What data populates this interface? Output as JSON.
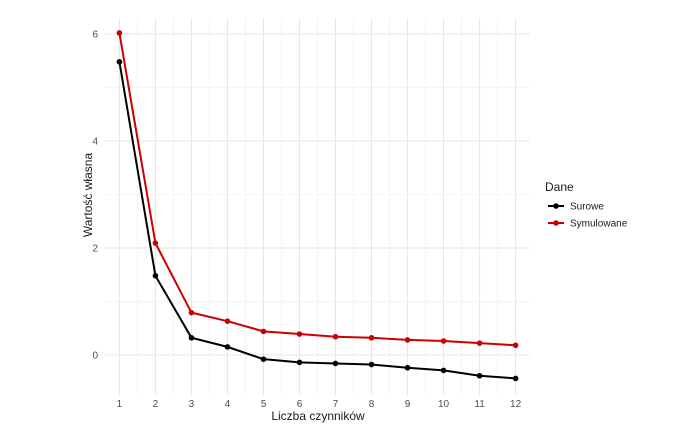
{
  "chart_data": {
    "type": "line",
    "title": "",
    "xlabel": "Liczba czynników",
    "ylabel": "Wartość własna",
    "x": [
      1,
      2,
      3,
      4,
      5,
      6,
      7,
      8,
      9,
      10,
      11,
      12
    ],
    "x_ticks": [
      "1",
      "2",
      "3",
      "4",
      "5",
      "6",
      "7",
      "8",
      "9",
      "10",
      "11",
      "12"
    ],
    "y_ticks": [
      "0",
      "2",
      "4",
      "6"
    ],
    "xlim": [
      0.6,
      12.4
    ],
    "ylim": [
      -0.75,
      6.3
    ],
    "grid": true,
    "legend": {
      "title": "Dane",
      "position": "right"
    },
    "series": [
      {
        "name": "Surowe",
        "color": "#000000",
        "values": [
          5.48,
          1.48,
          0.32,
          0.15,
          -0.08,
          -0.14,
          -0.16,
          -0.18,
          -0.24,
          -0.29,
          -0.39,
          -0.44
        ]
      },
      {
        "name": "Symulowane",
        "color": "#cc0000",
        "values": [
          6.02,
          2.09,
          0.79,
          0.63,
          0.44,
          0.39,
          0.34,
          0.32,
          0.28,
          0.26,
          0.22,
          0.18
        ]
      }
    ]
  }
}
